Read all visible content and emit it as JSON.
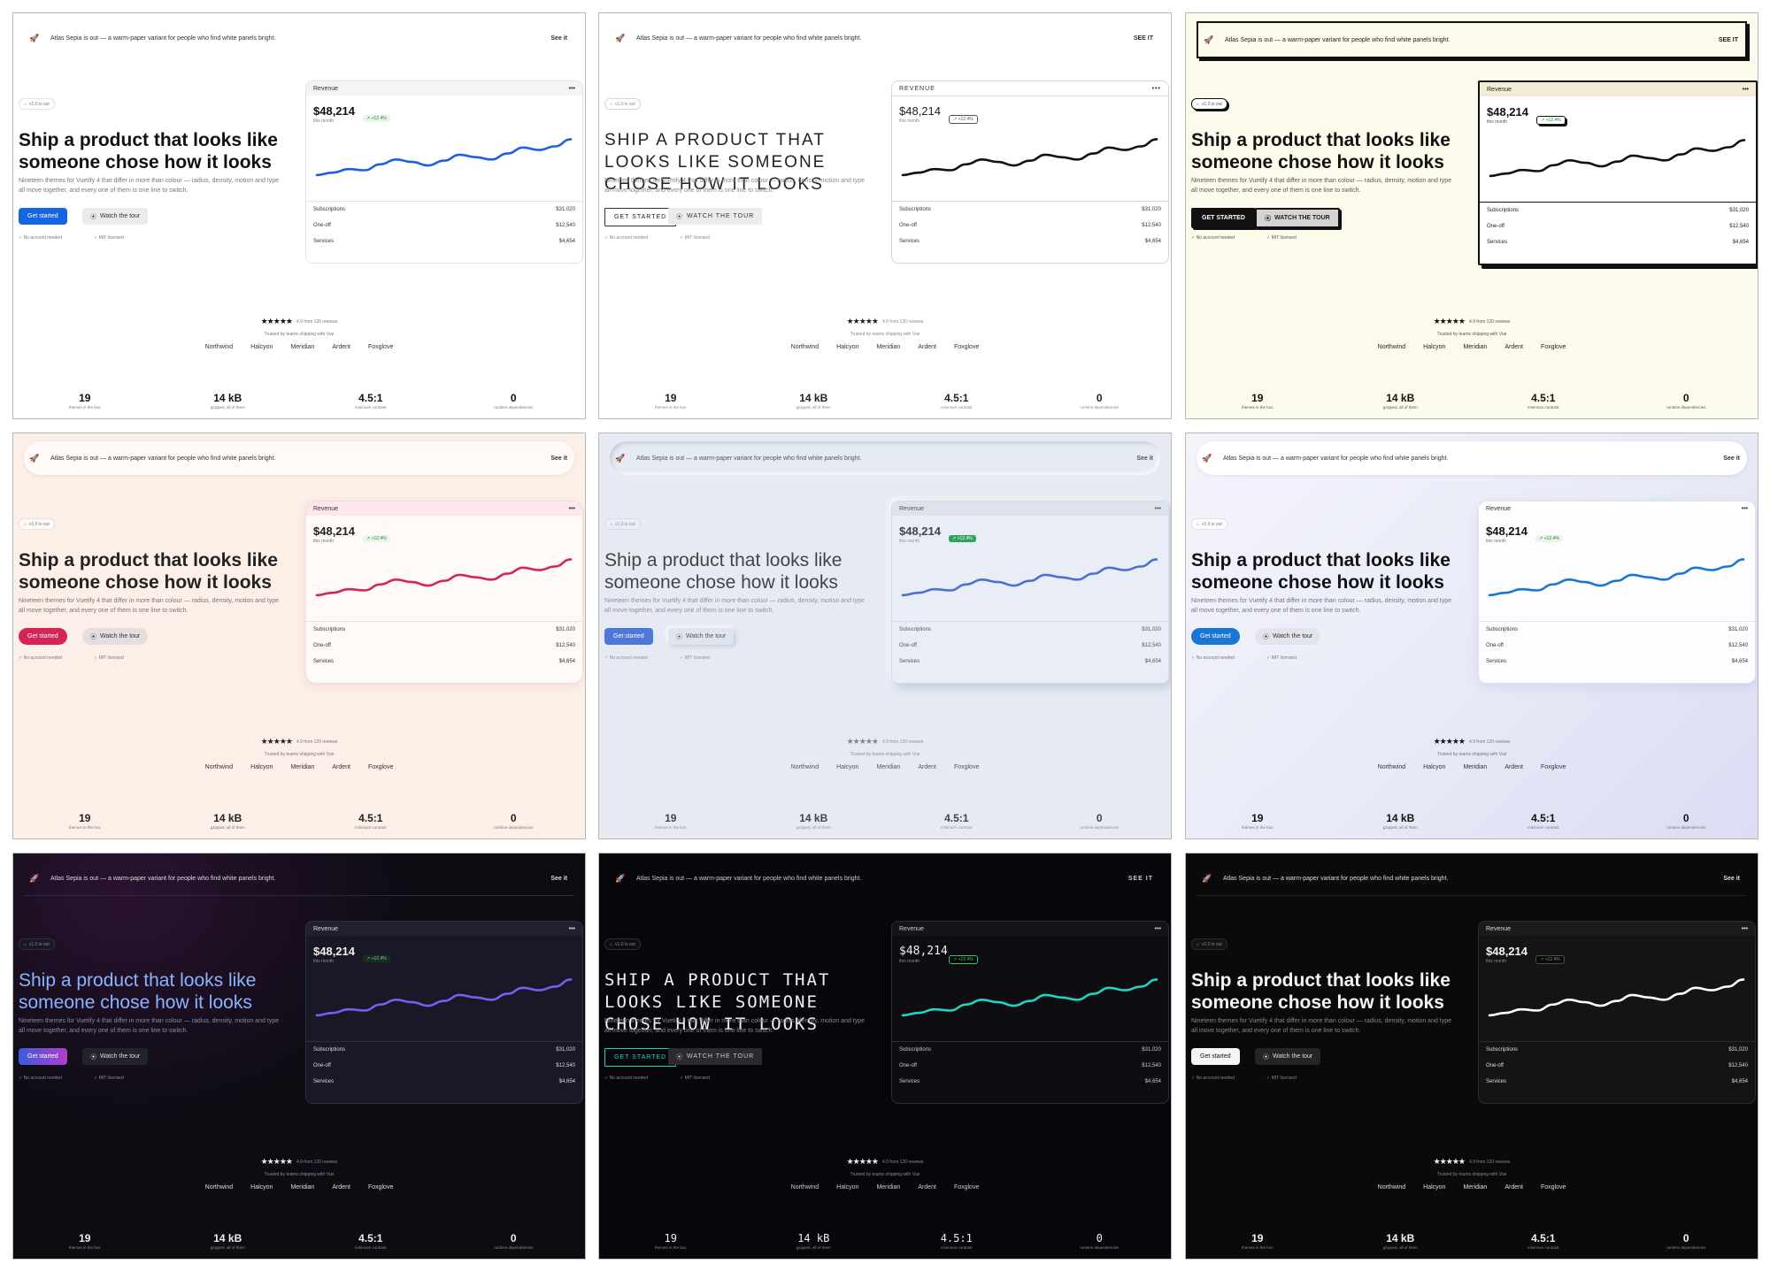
{
  "common": {
    "announcement": "Atlas Sepia is out — a warm-paper variant for people who find white panels bright.",
    "see_it": "See it",
    "see_it_caps": "SEE IT",
    "badge": "v1.0 is out",
    "headline": "Ship a product that looks like someone chose how it looks",
    "subtext": "Nineteen themes for Vuetify 4 that differ in more than colour — radius, density, motion and type all move together, and every one of them is one line to switch.",
    "get_started": "Get started",
    "watch_tour": "Watch the tour",
    "no_account": "No account needed",
    "mit": "MIT licensed",
    "card": {
      "title": "Revenue",
      "menu": "•••",
      "amount": "$48,214",
      "period": "this month",
      "delta": "+12.4%",
      "rows": [
        {
          "label": "Subscriptions",
          "value": "$31,020"
        },
        {
          "label": "One-off",
          "value": "$12,540"
        },
        {
          "label": "Services",
          "value": "$4,654"
        }
      ]
    },
    "stars": "★★★★★",
    "rating_text": "4.9 from 120 reviews",
    "trusted": "Trusted by teams shipping with Vue",
    "brands": [
      "Northwind",
      "Halcyon",
      "Meridian",
      "Ardent",
      "Foxglove"
    ],
    "stats": [
      {
        "num": "19",
        "label": "themes in the box"
      },
      {
        "num": "14 kB",
        "label": "gzipped, all of them"
      },
      {
        "num": "4.5:1",
        "label": "minimum contrast"
      },
      {
        "num": "0",
        "label": "runtime dependencies"
      }
    ]
  },
  "themes": {
    "light": {
      "line": "#1e5fe0"
    },
    "mono_light": {
      "line": "#111111"
    },
    "brutal": {
      "line": "#111111"
    },
    "rose": {
      "line": "#d4245a"
    },
    "soft": {
      "line": "#4d6fd0"
    },
    "glass": {
      "line": "#1976d2"
    },
    "aurora": {
      "line": "#7c5cf0"
    },
    "term": {
      "line": "#22d3c5"
    },
    "dark": {
      "line": "#ffffff"
    }
  },
  "chart_data": {
    "type": "line",
    "title": "Revenue",
    "x": [
      0,
      1,
      2,
      3,
      4,
      5,
      6,
      7,
      8,
      9,
      10,
      11,
      12,
      13,
      14,
      15,
      16
    ],
    "values": [
      12,
      16,
      22,
      20,
      30,
      38,
      34,
      28,
      36,
      46,
      42,
      38,
      48,
      58,
      54,
      60,
      72
    ],
    "ylim": [
      0,
      80
    ]
  }
}
